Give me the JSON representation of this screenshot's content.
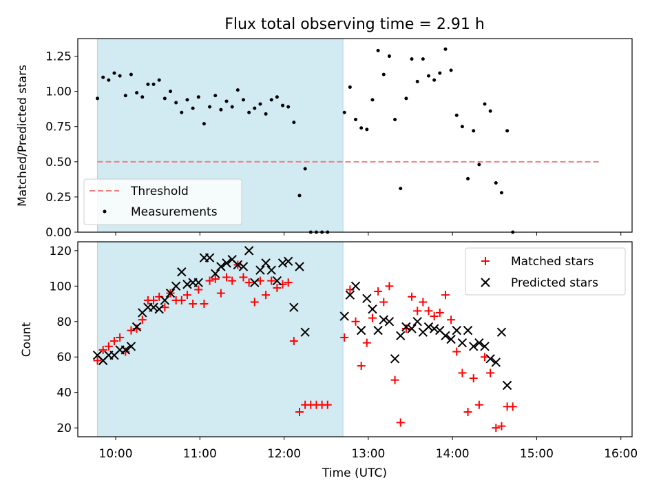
{
  "chart_data": {
    "type": "scatter",
    "title": "Flux total observing time = 2.91 h",
    "xlabel": "Time (UTC)",
    "x_ticks": [
      "10:00",
      "11:00",
      "12:00",
      "13:00",
      "14:00",
      "15:00",
      "16:00"
    ],
    "xlim": [
      "09:33",
      "16:08"
    ],
    "shaded_interval": {
      "start": "09:47",
      "end": "12:42",
      "color": "#add8e6"
    },
    "top": {
      "ylabel": "Matched/Predicted stars",
      "ylim": [
        0,
        1.375
      ],
      "y_ticks": [
        "0.00",
        "0.25",
        "0.50",
        "0.75",
        "1.00",
        "1.25"
      ],
      "legend": {
        "position": "lower-left",
        "entries": [
          "Threshold",
          "Measurements"
        ]
      },
      "threshold": {
        "label": "Threshold",
        "value": 0.5,
        "start": "09:47",
        "end": "15:45",
        "color": "#f08080"
      },
      "series": [
        {
          "name": "Measurements",
          "color": "#000000",
          "points": [
            [
              "09:47",
              0.95
            ],
            [
              "09:51",
              1.1
            ],
            [
              "09:55",
              1.08
            ],
            [
              "09:59",
              1.13
            ],
            [
              "10:03",
              1.11
            ],
            [
              "10:07",
              0.97
            ],
            [
              "10:11",
              1.12
            ],
            [
              "10:15",
              0.99
            ],
            [
              "10:19",
              0.96
            ],
            [
              "10:23",
              1.05
            ],
            [
              "10:27",
              1.05
            ],
            [
              "10:31",
              1.08
            ],
            [
              "10:35",
              0.95
            ],
            [
              "10:39",
              1.0
            ],
            [
              "10:43",
              0.92
            ],
            [
              "10:47",
              0.85
            ],
            [
              "10:51",
              0.94
            ],
            [
              "10:55",
              0.88
            ],
            [
              "10:59",
              0.96
            ],
            [
              "11:03",
              0.77
            ],
            [
              "11:07",
              0.89
            ],
            [
              "11:11",
              0.97
            ],
            [
              "11:15",
              0.87
            ],
            [
              "11:19",
              0.93
            ],
            [
              "11:23",
              0.89
            ],
            [
              "11:27",
              1.01
            ],
            [
              "11:31",
              0.94
            ],
            [
              "11:35",
              0.85
            ],
            [
              "11:39",
              0.88
            ],
            [
              "11:43",
              0.91
            ],
            [
              "11:47",
              0.84
            ],
            [
              "11:51",
              0.94
            ],
            [
              "11:55",
              0.96
            ],
            [
              "11:59",
              0.9
            ],
            [
              "12:03",
              0.89
            ],
            [
              "12:07",
              0.78
            ],
            [
              "12:11",
              0.26
            ],
            [
              "12:15",
              0.45
            ],
            [
              "12:19",
              0.0
            ],
            [
              "12:23",
              0.0
            ],
            [
              "12:27",
              0.0
            ],
            [
              "12:31",
              0.0
            ],
            [
              "12:43",
              0.85
            ],
            [
              "12:47",
              1.03
            ],
            [
              "12:51",
              0.8
            ],
            [
              "12:55",
              0.74
            ],
            [
              "12:59",
              0.73
            ],
            [
              "13:03",
              0.94
            ],
            [
              "13:07",
              1.29
            ],
            [
              "13:11",
              1.12
            ],
            [
              "13:15",
              1.25
            ],
            [
              "13:19",
              0.8
            ],
            [
              "13:23",
              0.31
            ],
            [
              "13:27",
              0.95
            ],
            [
              "13:31",
              1.23
            ],
            [
              "13:35",
              1.07
            ],
            [
              "13:39",
              1.23
            ],
            [
              "13:43",
              1.11
            ],
            [
              "13:47",
              1.08
            ],
            [
              "13:51",
              1.13
            ],
            [
              "13:55",
              1.3
            ],
            [
              "13:59",
              1.15
            ],
            [
              "14:03",
              0.83
            ],
            [
              "14:07",
              0.75
            ],
            [
              "14:11",
              0.38
            ],
            [
              "14:15",
              0.72
            ],
            [
              "14:19",
              0.48
            ],
            [
              "14:23",
              0.91
            ],
            [
              "14:27",
              0.86
            ],
            [
              "14:31",
              0.35
            ],
            [
              "14:35",
              0.28
            ],
            [
              "14:39",
              0.72
            ],
            [
              "14:43",
              0.0
            ]
          ]
        }
      ]
    },
    "bottom": {
      "ylabel": "Count",
      "ylim": [
        15,
        125
      ],
      "y_ticks": [
        "20",
        "40",
        "60",
        "80",
        "100",
        "120"
      ],
      "legend": {
        "position": "upper-right",
        "entries": [
          "Matched stars",
          "Predicted stars"
        ]
      },
      "series": [
        {
          "name": "Matched stars",
          "color": "#ff0000",
          "marker": "plus",
          "points": [
            [
              "09:47",
              58
            ],
            [
              "09:51",
              64
            ],
            [
              "09:55",
              66
            ],
            [
              "09:59",
              69
            ],
            [
              "10:03",
              71
            ],
            [
              "10:07",
              63
            ],
            [
              "10:11",
              75
            ],
            [
              "10:15",
              76
            ],
            [
              "10:19",
              81
            ],
            [
              "10:23",
              92
            ],
            [
              "10:27",
              92
            ],
            [
              "10:31",
              94
            ],
            [
              "10:35",
              88
            ],
            [
              "10:39",
              96
            ],
            [
              "10:43",
              92
            ],
            [
              "10:47",
              92
            ],
            [
              "10:51",
              95
            ],
            [
              "10:55",
              90
            ],
            [
              "10:59",
              98
            ],
            [
              "11:03",
              90
            ],
            [
              "11:07",
              103
            ],
            [
              "11:11",
              104
            ],
            [
              "11:15",
              96
            ],
            [
              "11:19",
              105
            ],
            [
              "11:23",
              103
            ],
            [
              "11:27",
              112
            ],
            [
              "11:31",
              105
            ],
            [
              "11:35",
              102
            ],
            [
              "11:39",
              91
            ],
            [
              "11:43",
              103
            ],
            [
              "11:47",
              95
            ],
            [
              "11:51",
              103
            ],
            [
              "11:55",
              99
            ],
            [
              "11:59",
              101
            ],
            [
              "12:03",
              102
            ],
            [
              "12:07",
              69
            ],
            [
              "12:11",
              29
            ],
            [
              "12:15",
              33
            ],
            [
              "12:19",
              33
            ],
            [
              "12:23",
              33
            ],
            [
              "12:27",
              33
            ],
            [
              "12:31",
              33
            ],
            [
              "12:43",
              71
            ],
            [
              "12:47",
              98
            ],
            [
              "12:51",
              80
            ],
            [
              "12:55",
              55
            ],
            [
              "12:59",
              68
            ],
            [
              "13:03",
              82
            ],
            [
              "13:07",
              97
            ],
            [
              "13:11",
              91
            ],
            [
              "13:15",
              100
            ],
            [
              "13:19",
              47
            ],
            [
              "13:23",
              23
            ],
            [
              "13:27",
              76
            ],
            [
              "13:31",
              94
            ],
            [
              "13:35",
              86
            ],
            [
              "13:39",
              91
            ],
            [
              "13:43",
              86
            ],
            [
              "13:47",
              83
            ],
            [
              "13:51",
              85
            ],
            [
              "13:55",
              95
            ],
            [
              "13:59",
              81
            ],
            [
              "14:03",
              63
            ],
            [
              "14:07",
              51
            ],
            [
              "14:11",
              29
            ],
            [
              "14:15",
              48
            ],
            [
              "14:19",
              33
            ],
            [
              "14:23",
              60
            ],
            [
              "14:27",
              51
            ],
            [
              "14:31",
              20
            ],
            [
              "14:35",
              21
            ],
            [
              "14:39",
              32
            ],
            [
              "14:43",
              32
            ]
          ]
        },
        {
          "name": "Predicted stars",
          "color": "#000000",
          "marker": "x",
          "points": [
            [
              "09:47",
              61
            ],
            [
              "09:51",
              58
            ],
            [
              "09:55",
              61
            ],
            [
              "09:59",
              61
            ],
            [
              "10:03",
              64
            ],
            [
              "10:07",
              64
            ],
            [
              "10:11",
              66
            ],
            [
              "10:15",
              77
            ],
            [
              "10:19",
              85
            ],
            [
              "10:23",
              88
            ],
            [
              "10:27",
              88
            ],
            [
              "10:31",
              87
            ],
            [
              "10:35",
              92
            ],
            [
              "10:39",
              96
            ],
            [
              "10:43",
              100
            ],
            [
              "10:47",
              108
            ],
            [
              "10:51",
              101
            ],
            [
              "10:55",
              102
            ],
            [
              "10:59",
              102
            ],
            [
              "11:03",
              116
            ],
            [
              "11:07",
              116
            ],
            [
              "11:11",
              107
            ],
            [
              "11:15",
              111
            ],
            [
              "11:19",
              113
            ],
            [
              "11:23",
              115
            ],
            [
              "11:27",
              112
            ],
            [
              "11:31",
              111
            ],
            [
              "11:35",
              120
            ],
            [
              "11:39",
              102
            ],
            [
              "11:43",
              109
            ],
            [
              "11:47",
              113
            ],
            [
              "11:51",
              109
            ],
            [
              "11:55",
              103
            ],
            [
              "11:59",
              113
            ],
            [
              "12:03",
              114
            ],
            [
              "12:07",
              88
            ],
            [
              "12:11",
              111
            ],
            [
              "12:15",
              74
            ],
            [
              "12:43",
              83
            ],
            [
              "12:47",
              95
            ],
            [
              "12:51",
              100
            ],
            [
              "12:55",
              75
            ],
            [
              "12:59",
              93
            ],
            [
              "13:03",
              87
            ],
            [
              "13:07",
              75
            ],
            [
              "13:11",
              81
            ],
            [
              "13:15",
              80
            ],
            [
              "13:19",
              59
            ],
            [
              "13:23",
              72
            ],
            [
              "13:27",
              77
            ],
            [
              "13:31",
              76
            ],
            [
              "13:35",
              80
            ],
            [
              "13:39",
              74
            ],
            [
              "13:43",
              77
            ],
            [
              "13:47",
              76
            ],
            [
              "13:51",
              75
            ],
            [
              "13:55",
              72
            ],
            [
              "13:59",
              70
            ],
            [
              "14:03",
              75
            ],
            [
              "14:07",
              68
            ],
            [
              "14:11",
              75
            ],
            [
              "14:15",
              66
            ],
            [
              "14:19",
              68
            ],
            [
              "14:23",
              66
            ],
            [
              "14:27",
              59
            ],
            [
              "14:31",
              57
            ],
            [
              "14:35",
              74
            ],
            [
              "14:39",
              44
            ]
          ]
        }
      ]
    }
  }
}
